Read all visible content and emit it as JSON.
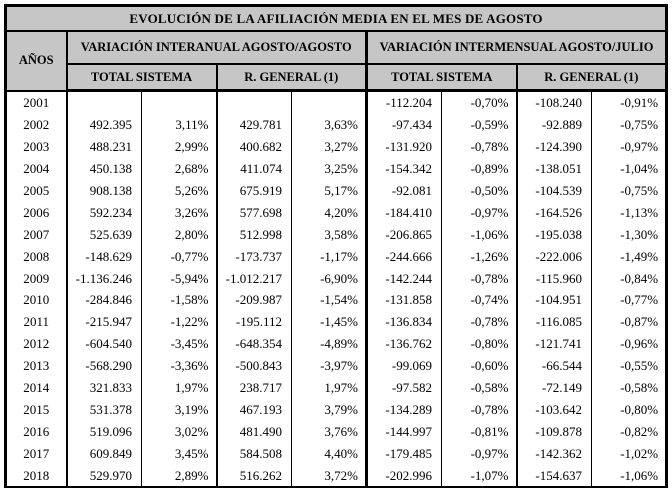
{
  "title": "EVOLUCIÓN DE LA AFILIACIÓN MEDIA EN EL MES DE AGOSTO",
  "header": {
    "years": "AÑOS",
    "interanual": "VARIACIÓN INTERANUAL AGOSTO/AGOSTO",
    "intermensual": "VARIACIÓN INTERMENSUAL AGOSTO/JULIO",
    "subheaders": [
      "TOTAL SISTEMA",
      "R. GENERAL (1)",
      "TOTAL SISTEMA",
      "R. GENERAL (1)"
    ]
  },
  "colors": {
    "header_bg": "#c6c6c6",
    "border": "#000000",
    "text": "#000000",
    "row_bg": "#ffffff"
  },
  "rows": [
    {
      "year": "2001",
      "cells": [
        "",
        "",
        "",
        "",
        "-112.204",
        "-0,70%",
        "-108.240",
        "-0,91%"
      ]
    },
    {
      "year": "2002",
      "cells": [
        "492.395",
        "3,11%",
        "429.781",
        "3,63%",
        "-97.434",
        "-0,59%",
        "-92.889",
        "-0,75%"
      ]
    },
    {
      "year": "2003",
      "cells": [
        "488.231",
        "2,99%",
        "400.682",
        "3,27%",
        "-131.920",
        "-0,78%",
        "-124.390",
        "-0,97%"
      ]
    },
    {
      "year": "2004",
      "cells": [
        "450.138",
        "2,68%",
        "411.074",
        "3,25%",
        "-154.342",
        "-0,89%",
        "-138.051",
        "-1,04%"
      ]
    },
    {
      "year": "2005",
      "cells": [
        "908.138",
        "5,26%",
        "675.919",
        "5,17%",
        "-92.081",
        "-0,50%",
        "-104.539",
        "-0,75%"
      ]
    },
    {
      "year": "2006",
      "cells": [
        "592.234",
        "3,26%",
        "577.698",
        "4,20%",
        "-184.410",
        "-0,97%",
        "-164.526",
        "-1,13%"
      ]
    },
    {
      "year": "2007",
      "cells": [
        "525.639",
        "2,80%",
        "512.998",
        "3,58%",
        "-206.865",
        "-1,06%",
        "-195.038",
        "-1,30%"
      ]
    },
    {
      "year": "2008",
      "cells": [
        "-148.629",
        "-0,77%",
        "-173.737",
        "-1,17%",
        "-244.666",
        "-1,26%",
        "-222.006",
        "-1,49%"
      ]
    },
    {
      "year": "2009",
      "cells": [
        "-1.136.246",
        "-5,94%",
        "-1.012.217",
        "-6,90%",
        "-142.244",
        "-0,78%",
        "-115.960",
        "-0,84%"
      ]
    },
    {
      "year": "2010",
      "cells": [
        "-284.846",
        "-1,58%",
        "-209.987",
        "-1,54%",
        "-131.858",
        "-0,74%",
        "-104.951",
        "-0,77%"
      ]
    },
    {
      "year": "2011",
      "cells": [
        "-215.947",
        "-1,22%",
        "-195.112",
        "-1,45%",
        "-136.834",
        "-0,78%",
        "-116.085",
        "-0,87%"
      ]
    },
    {
      "year": "2012",
      "cells": [
        "-604.540",
        "-3,45%",
        "-648.354",
        "-4,89%",
        "-136.762",
        "-0,80%",
        "-121.741",
        "-0,96%"
      ]
    },
    {
      "year": "2013",
      "cells": [
        "-568.290",
        "-3,36%",
        "-500.843",
        "-3,97%",
        "-99.069",
        "-0,60%",
        "-66.544",
        "-0,55%"
      ]
    },
    {
      "year": "2014",
      "cells": [
        "321.833",
        "1,97%",
        "238.717",
        "1,97%",
        "-97.582",
        "-0,58%",
        "-72.149",
        "-0,58%"
      ]
    },
    {
      "year": "2015",
      "cells": [
        "531.378",
        "3,19%",
        "467.193",
        "3,79%",
        "-134.289",
        "-0,78%",
        "-103.642",
        "-0,80%"
      ]
    },
    {
      "year": "2016",
      "cells": [
        "519.096",
        "3,02%",
        "481.490",
        "3,76%",
        "-144.997",
        "-0,81%",
        "-109.878",
        "-0,82%"
      ]
    },
    {
      "year": "2017",
      "cells": [
        "609.849",
        "3,45%",
        "584.508",
        "4,40%",
        "-179.485",
        "-0,97%",
        "-142.362",
        "-1,02%"
      ]
    },
    {
      "year": "2018",
      "cells": [
        "529.970",
        "2,89%",
        "516.262",
        "3,72%",
        "-202.996",
        "-1,07%",
        "-154.637",
        "-1,06%"
      ]
    }
  ]
}
